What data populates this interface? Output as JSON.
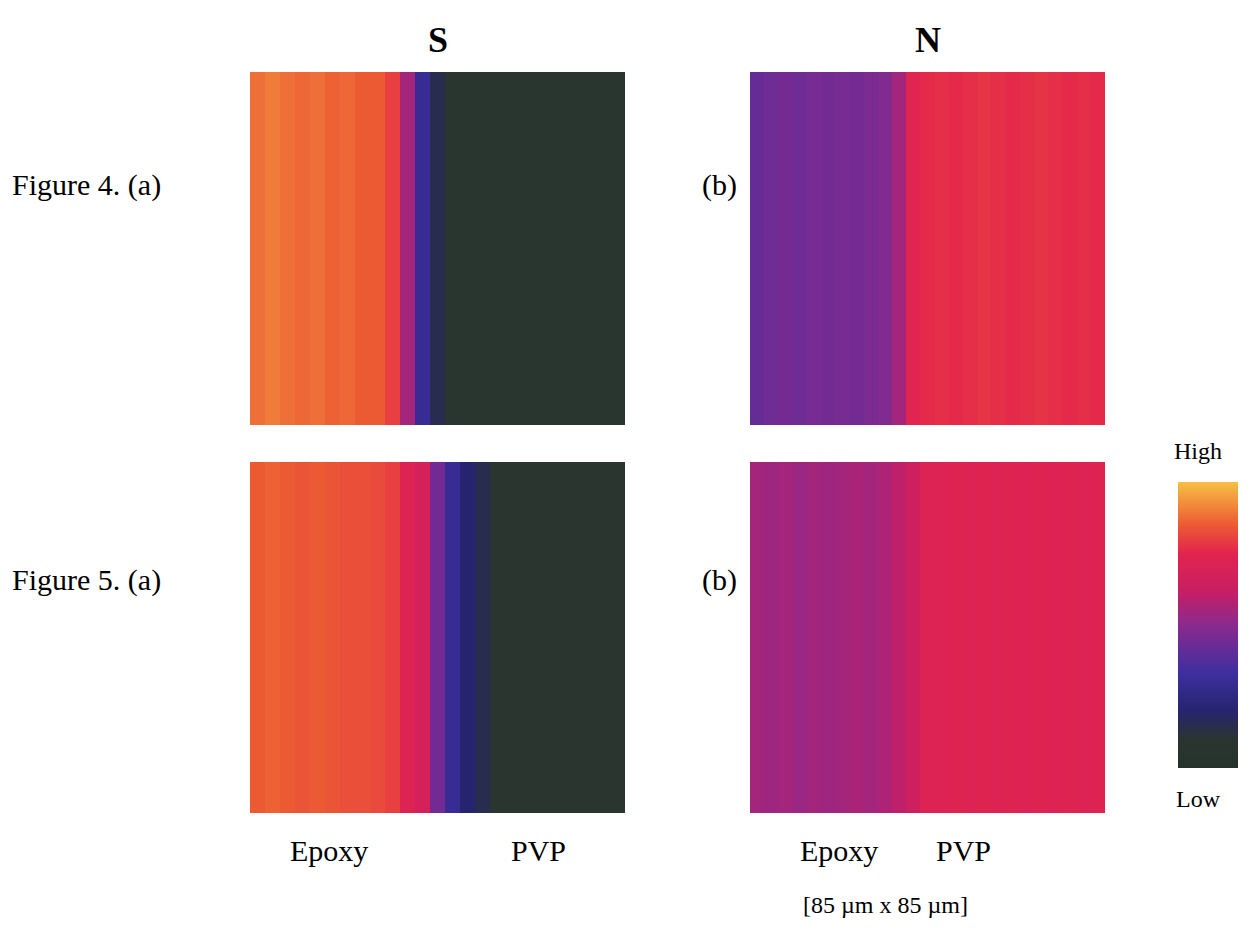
{
  "column_titles": [
    "S",
    "N"
  ],
  "region_labels": [
    "Epoxy",
    "PVP"
  ],
  "field_of_view": "[85 µm x 85 µm]",
  "color_bar": {
    "range": [
      0,
      1
    ],
    "ticks": [
      {
        "value": 1,
        "label": "High"
      },
      {
        "value": 0,
        "label": "Low"
      }
    ]
  },
  "chart_data": [
    {
      "type": "heatmap",
      "panel_label": "Figure 4. (a)",
      "cells": [
        [
          0.88,
          0.9,
          0.88,
          0.87,
          0.88,
          0.86,
          0.87,
          0.85,
          0.85,
          0.8,
          0.55,
          0.3,
          0.15,
          0.08,
          0.08,
          0.08,
          0.08,
          0.08,
          0.08,
          0.08,
          0.08,
          0.08,
          0.08,
          0.08,
          0.08
        ]
      ]
    },
    {
      "type": "heatmap",
      "panel_label": "(b)",
      "cells": [
        [
          0.42,
          0.44,
          0.45,
          0.44,
          0.46,
          0.45,
          0.46,
          0.45,
          0.47,
          0.48,
          0.55,
          0.74,
          0.76,
          0.77,
          0.76,
          0.77,
          0.78,
          0.77,
          0.76,
          0.77,
          0.78,
          0.77,
          0.76,
          0.77,
          0.76
        ]
      ]
    },
    {
      "type": "heatmap",
      "panel_label": "Figure 5. (a)",
      "cells": [
        [
          0.85,
          0.86,
          0.85,
          0.84,
          0.85,
          0.84,
          0.83,
          0.83,
          0.82,
          0.8,
          0.72,
          0.68,
          0.45,
          0.3,
          0.2,
          0.15,
          0.1,
          0.1,
          0.1,
          0.1,
          0.1,
          0.1,
          0.1,
          0.1,
          0.1
        ]
      ]
    },
    {
      "type": "heatmap",
      "panel_label": "(b)",
      "cells": [
        [
          0.55,
          0.54,
          0.55,
          0.53,
          0.55,
          0.54,
          0.55,
          0.56,
          0.55,
          0.57,
          0.6,
          0.65,
          0.72,
          0.72,
          0.73,
          0.72,
          0.73,
          0.72,
          0.73,
          0.72,
          0.73,
          0.72,
          0.73,
          0.72,
          0.73
        ]
      ]
    }
  ]
}
